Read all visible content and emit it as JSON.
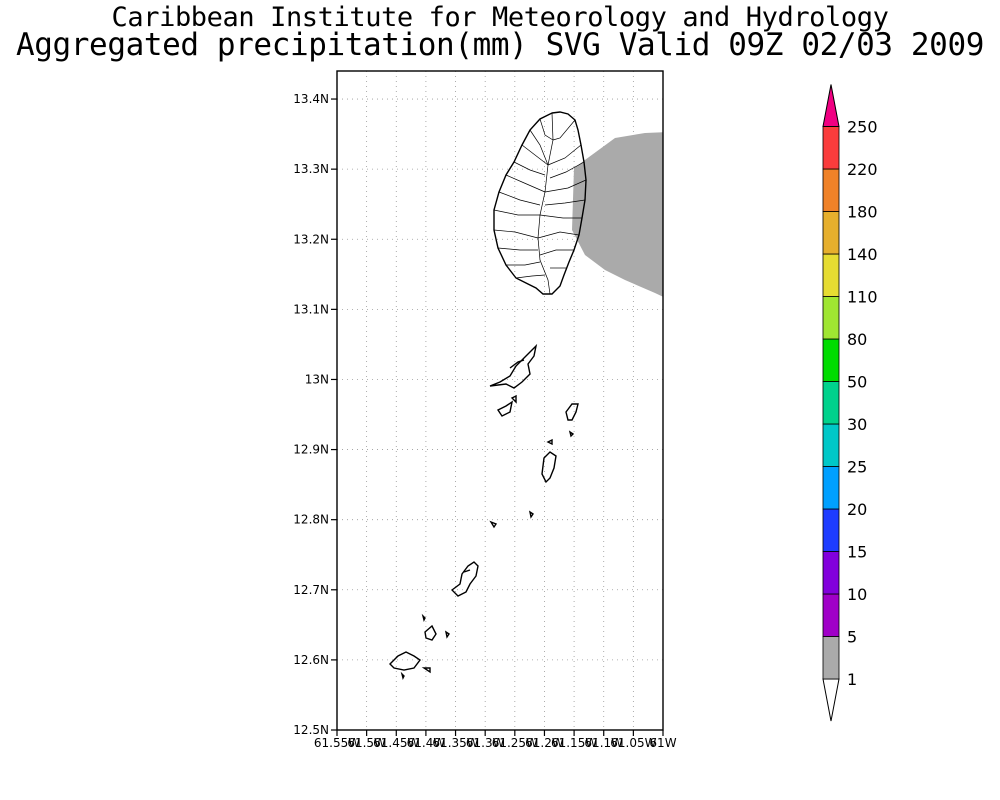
{
  "title": {
    "line1": "Caribbean Institute for Meteorology and Hydrology",
    "line2": "Aggregated precipitation(mm) SVG Valid 09Z 02/03 2009"
  },
  "map": {
    "lon_range": [
      -61.55,
      -61.0
    ],
    "lat_range": [
      12.5,
      13.44
    ],
    "y_ticks": [
      "12.5N",
      "12.6N",
      "12.7N",
      "12.8N",
      "12.9N",
      "13N",
      "13.1N",
      "13.2N",
      "13.3N",
      "13.4N"
    ],
    "x_ticks": [
      "61.55W",
      "61.5W",
      "61.45W",
      "61.4W",
      "61.35W",
      "61.3W",
      "61.25W",
      "61.2W",
      "61.15W",
      "61.1W",
      "61.05W",
      "61W"
    ],
    "grid": "dotted",
    "precip_area_color": "#aaaaaa"
  },
  "colorbar": {
    "labels": [
      "1",
      "5",
      "10",
      "15",
      "20",
      "25",
      "30",
      "50",
      "80",
      "110",
      "140",
      "180",
      "220",
      "250"
    ],
    "colors": [
      "#aaaaaa",
      "#a000c8",
      "#8200dc",
      "#1e3cff",
      "#00a0ff",
      "#00c8c8",
      "#00d28c",
      "#00dc00",
      "#a0e632",
      "#e6dc32",
      "#e6af2d",
      "#f08228",
      "#fa3c3c",
      "#f00082"
    ]
  }
}
